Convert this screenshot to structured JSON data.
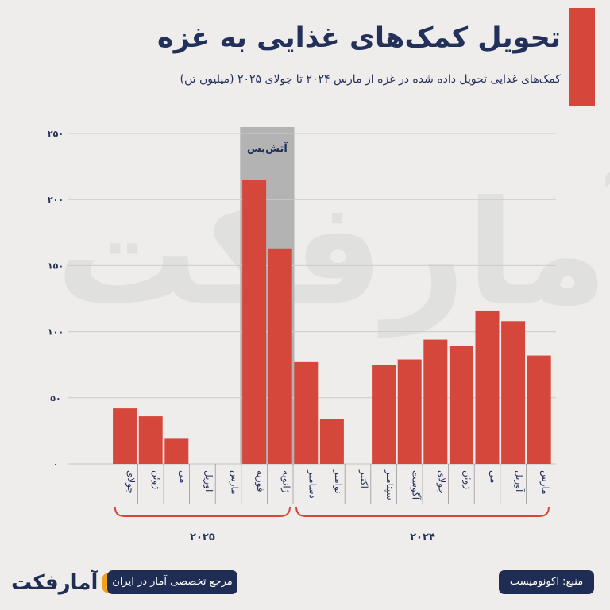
{
  "header": {
    "title": "تحویل کمک‌های غذایی به غزه",
    "subtitle": "کمک‌های غذایی تحویل داده شده در غزه از مارس ۲۰۲۴ تا جولای ۲۰۲۵ (میلیون تن)"
  },
  "watermark": "آمارفکت",
  "colors": {
    "bar": "#d6473b",
    "highlight": "#b3b3b3",
    "text": "#22305a",
    "grid": "#cccccc",
    "bracket": "#d6473b"
  },
  "chart_data": {
    "type": "bar",
    "title": "تحویل کمک‌های غذایی به غزه",
    "ylabel": "میلیون تن",
    "ylim": [
      0,
      250
    ],
    "yticks": [
      0,
      50,
      100,
      150,
      200,
      250
    ],
    "ytick_labels": [
      "۰",
      "۵۰",
      "۱۰۰",
      "۱۵۰",
      "۲۰۰",
      "۲۵۰"
    ],
    "categories": [
      "مارس",
      "آوریل",
      "می",
      "ژوئن",
      "جولای",
      "آگوست",
      "سپتامبر",
      "اکتبر",
      "نوامبر",
      "دسامبر",
      "ژانویه",
      "فوریه",
      "مارس",
      "آوریل",
      "می",
      "ژوئن",
      "جولای"
    ],
    "values": [
      82,
      108,
      116,
      89,
      94,
      79,
      75,
      0,
      34,
      77,
      163,
      215,
      0,
      0,
      19,
      36,
      42
    ],
    "groups": [
      {
        "label": "۲۰۲۴",
        "start": 0,
        "end": 9
      },
      {
        "label": "۲۰۲۵",
        "start": 10,
        "end": 16
      }
    ],
    "highlight": {
      "label": "آتش‌بس",
      "start": 10,
      "end": 11
    }
  },
  "footer": {
    "tagline": "مرجع تخصصی آمار در ایران",
    "source": "منبع: اکونومیست",
    "logo_text": "آمارفکت"
  }
}
